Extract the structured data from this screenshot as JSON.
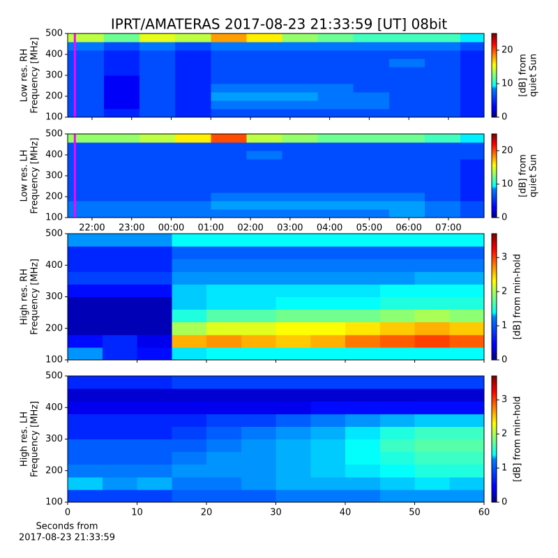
{
  "title": "IPRT/AMATERAS 2017-08-23 21:33:59 [UT]   08bit",
  "chart_data": [
    {
      "type": "heatmap",
      "ylabel": [
        "Low res. RH",
        "Frequency [MHz]"
      ],
      "clabel": [
        "[dB] from",
        "quiet Sun"
      ],
      "xlim": [
        21.384,
        31.9
      ],
      "ylim": [
        100,
        500
      ],
      "yticks": [
        100,
        200,
        300,
        400,
        500
      ],
      "clim": [
        0,
        25
      ],
      "cticks": [
        0,
        10,
        20
      ],
      "marker_x": 21.566,
      "marker_color": "#ff00ff",
      "xbins": [
        21.384,
        22.3,
        23.2,
        24.1,
        25.0,
        25.9,
        26.8,
        27.7,
        28.6,
        29.5,
        30.4,
        31.3,
        31.9
      ],
      "ybins": [
        100,
        140,
        180,
        220,
        260,
        300,
        340,
        380,
        420,
        460,
        500
      ],
      "z": [
        [
          5,
          4,
          5,
          4,
          5,
          5,
          5,
          5,
          5,
          5,
          5,
          4
        ],
        [
          5,
          3,
          5,
          4,
          6,
          6,
          6,
          6,
          6,
          5,
          5,
          4
        ],
        [
          5,
          3,
          5,
          4,
          7,
          7,
          7,
          6,
          6,
          5,
          5,
          4
        ],
        [
          5,
          3,
          5,
          4,
          6,
          6,
          6,
          6,
          5,
          5,
          5,
          4
        ],
        [
          5,
          3,
          5,
          4,
          5,
          5,
          5,
          5,
          5,
          5,
          5,
          4
        ],
        [
          5,
          4,
          5,
          4,
          5,
          5,
          5,
          5,
          5,
          5,
          5,
          4
        ],
        [
          5,
          4,
          5,
          4,
          5,
          5,
          5,
          5,
          5,
          6,
          5,
          4
        ],
        [
          5,
          4,
          5,
          4,
          5,
          5,
          5,
          5,
          5,
          5,
          5,
          4
        ],
        [
          6,
          5,
          6,
          5,
          6,
          6,
          6,
          6,
          6,
          6,
          6,
          5
        ],
        [
          14,
          12,
          15,
          14,
          18,
          16,
          13,
          12,
          11,
          11,
          11,
          9
        ]
      ]
    },
    {
      "type": "heatmap",
      "ylabel": [
        "Low res. LH",
        "Frequency [MHz]"
      ],
      "clabel": [
        "[dB] from",
        "quiet Sun"
      ],
      "xlim": [
        21.384,
        31.9
      ],
      "ylim": [
        100,
        500
      ],
      "yticks": [
        100,
        200,
        300,
        400,
        500
      ],
      "xticks": [
        {
          "value": 22,
          "label": "22:00"
        },
        {
          "value": 23,
          "label": "23:00"
        },
        {
          "value": 24,
          "label": "00:00"
        },
        {
          "value": 25,
          "label": "01:00"
        },
        {
          "value": 26,
          "label": "02:00"
        },
        {
          "value": 27,
          "label": "03:00"
        },
        {
          "value": 28,
          "label": "04:00"
        },
        {
          "value": 29,
          "label": "05:00"
        },
        {
          "value": 30,
          "label": "06:00"
        },
        {
          "value": 31,
          "label": "07:00"
        }
      ],
      "clim": [
        0,
        25
      ],
      "cticks": [
        0,
        10,
        20
      ],
      "marker_x": 21.566,
      "marker_color": "#ff00ff",
      "xbins": [
        21.384,
        22.3,
        23.2,
        24.1,
        25.0,
        25.9,
        26.8,
        27.7,
        28.6,
        29.5,
        30.4,
        31.3,
        31.9
      ],
      "ybins": [
        100,
        140,
        180,
        220,
        260,
        300,
        340,
        380,
        420,
        460,
        500
      ],
      "z": [
        [
          6,
          6,
          6,
          6,
          6,
          6,
          6,
          6,
          6,
          7,
          6,
          5
        ],
        [
          6,
          6,
          6,
          6,
          7,
          7,
          7,
          7,
          7,
          7,
          6,
          5
        ],
        [
          5,
          5,
          5,
          5,
          6,
          6,
          6,
          6,
          6,
          6,
          5,
          4
        ],
        [
          5,
          5,
          5,
          5,
          5,
          5,
          5,
          5,
          5,
          5,
          5,
          4
        ],
        [
          5,
          5,
          5,
          5,
          5,
          5,
          5,
          5,
          5,
          5,
          5,
          4
        ],
        [
          5,
          5,
          5,
          5,
          5,
          5,
          5,
          5,
          5,
          5,
          5,
          4
        ],
        [
          5,
          5,
          5,
          5,
          5,
          5,
          5,
          5,
          5,
          5,
          5,
          4
        ],
        [
          5,
          5,
          5,
          5,
          5,
          6,
          5,
          5,
          5,
          5,
          5,
          5
        ],
        [
          5,
          5,
          5,
          5,
          5,
          5,
          5,
          5,
          5,
          5,
          5,
          5
        ],
        [
          13,
          13,
          14,
          16,
          20,
          14,
          13,
          12,
          12,
          12,
          11,
          9
        ]
      ]
    },
    {
      "type": "heatmap",
      "ylabel": [
        "High res. RH",
        "Frequency [MHz]"
      ],
      "clabel": [
        "[dB] from min-hold"
      ],
      "xlim": [
        0,
        60
      ],
      "ylim": [
        100,
        500
      ],
      "yticks": [
        100,
        200,
        300,
        400,
        500
      ],
      "clim": [
        0,
        3.7
      ],
      "cticks": [
        0,
        1,
        2,
        3
      ],
      "xbins": [
        0,
        5,
        10,
        15,
        20,
        25,
        30,
        35,
        40,
        45,
        50,
        55,
        60
      ],
      "ybins": [
        100,
        140,
        180,
        220,
        260,
        300,
        340,
        380,
        420,
        460,
        500
      ],
      "z": [
        [
          1.0,
          0.6,
          0.5,
          1.3,
          1.4,
          1.4,
          1.4,
          1.4,
          1.4,
          1.4,
          1.4,
          1.4
        ],
        [
          0.5,
          0.6,
          0.4,
          2.6,
          2.7,
          2.6,
          2.5,
          2.6,
          2.8,
          2.9,
          3.0,
          2.9
        ],
        [
          0.2,
          0.2,
          0.2,
          2.0,
          2.2,
          2.2,
          2.3,
          2.3,
          2.4,
          2.5,
          2.6,
          2.5
        ],
        [
          0.2,
          0.2,
          0.2,
          1.5,
          1.7,
          1.7,
          1.8,
          1.8,
          1.8,
          1.9,
          2.0,
          1.9
        ],
        [
          0.2,
          0.2,
          0.2,
          1.2,
          1.3,
          1.3,
          1.4,
          1.4,
          1.4,
          1.5,
          1.5,
          1.5
        ],
        [
          0.5,
          0.5,
          0.5,
          1.2,
          1.3,
          1.3,
          1.3,
          1.3,
          1.3,
          1.4,
          1.4,
          1.4
        ],
        [
          0.7,
          0.7,
          0.7,
          1.0,
          1.0,
          1.0,
          1.0,
          1.0,
          1.0,
          1.0,
          1.1,
          1.1
        ],
        [
          0.6,
          0.6,
          0.6,
          0.9,
          0.9,
          0.9,
          0.9,
          0.9,
          0.9,
          0.9,
          0.9,
          0.9
        ],
        [
          0.6,
          0.6,
          0.6,
          0.8,
          0.8,
          0.8,
          0.8,
          0.8,
          0.8,
          0.8,
          0.8,
          0.8
        ],
        [
          1.0,
          1.0,
          1.0,
          1.4,
          1.4,
          1.4,
          1.4,
          1.4,
          1.4,
          1.4,
          1.4,
          1.4
        ]
      ]
    },
    {
      "type": "heatmap",
      "ylabel": [
        "High res. LH",
        "Frequency [MHz]"
      ],
      "clabel": [
        "[dB] from min-hold"
      ],
      "xlabel": [
        "Seconds from",
        "2017-08-23 21:33:59"
      ],
      "xlim": [
        0,
        60
      ],
      "xticks": [
        0,
        10,
        20,
        30,
        40,
        50,
        60
      ],
      "ylim": [
        100,
        500
      ],
      "yticks": [
        100,
        200,
        300,
        400,
        500
      ],
      "clim": [
        0,
        3.7
      ],
      "cticks": [
        0,
        1,
        2,
        3
      ],
      "xbins": [
        0,
        5,
        10,
        15,
        20,
        25,
        30,
        35,
        40,
        45,
        50,
        55,
        60
      ],
      "ybins": [
        100,
        140,
        180,
        220,
        260,
        300,
        340,
        380,
        420,
        460,
        500
      ],
      "z": [
        [
          0.7,
          0.7,
          0.7,
          0.8,
          0.8,
          0.8,
          0.9,
          0.9,
          0.9,
          1.0,
          1.0,
          1.0
        ],
        [
          1.2,
          1.0,
          1.1,
          0.9,
          0.9,
          1.0,
          1.1,
          1.1,
          1.1,
          1.2,
          1.3,
          1.2
        ],
        [
          0.9,
          0.9,
          0.9,
          1.0,
          1.0,
          1.0,
          1.1,
          1.2,
          1.3,
          1.4,
          1.5,
          1.5
        ],
        [
          0.8,
          0.8,
          0.8,
          0.9,
          1.0,
          1.0,
          1.1,
          1.2,
          1.4,
          1.5,
          1.6,
          1.6
        ],
        [
          0.8,
          0.8,
          0.8,
          0.8,
          0.9,
          1.0,
          1.1,
          1.2,
          1.4,
          1.6,
          1.7,
          1.7
        ],
        [
          0.6,
          0.6,
          0.6,
          0.7,
          0.8,
          0.9,
          1.0,
          1.1,
          1.3,
          1.5,
          1.6,
          1.6
        ],
        [
          0.6,
          0.6,
          0.6,
          0.6,
          0.7,
          0.7,
          0.8,
          0.9,
          1.0,
          1.1,
          1.2,
          1.2
        ],
        [
          0.4,
          0.4,
          0.4,
          0.4,
          0.4,
          0.4,
          0.4,
          0.5,
          0.5,
          0.5,
          0.5,
          0.5
        ],
        [
          0.3,
          0.3,
          0.3,
          0.3,
          0.3,
          0.3,
          0.3,
          0.3,
          0.3,
          0.3,
          0.3,
          0.3
        ],
        [
          0.6,
          0.6,
          0.6,
          0.7,
          0.7,
          0.7,
          0.7,
          0.7,
          0.7,
          0.7,
          0.7,
          0.7
        ]
      ]
    }
  ]
}
